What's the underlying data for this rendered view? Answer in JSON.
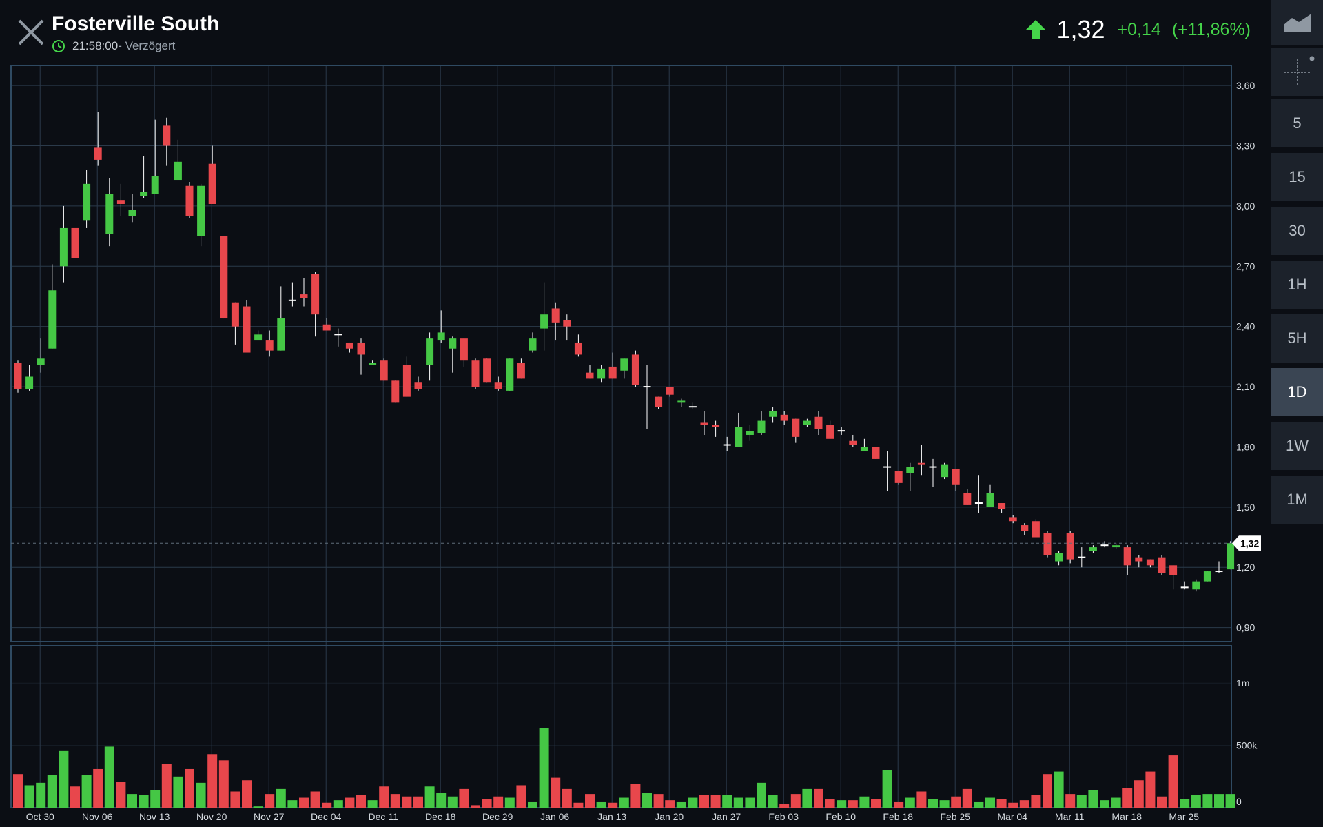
{
  "header": {
    "title": "Fosterville South",
    "time": "21:58:00",
    "delay_label": " - Verzögert",
    "last": "1,32",
    "change": "+0,14",
    "change_pct": "(+11,86%)"
  },
  "toolbar": {
    "timeframes": [
      "5",
      "15",
      "30",
      "1H",
      "5H",
      "1D",
      "1W",
      "1M"
    ],
    "active": "1D"
  },
  "colors": {
    "up": "#45c745",
    "down": "#e8474c",
    "flat": "#ffffff",
    "grid": "#2b3a4a",
    "background": "#0b0e14"
  },
  "chart_data": {
    "type": "candlestick",
    "y_ticks": [
      "3,60",
      "3,30",
      "3,00",
      "2,70",
      "2,40",
      "2,10",
      "1,80",
      "1,50",
      "1,20",
      "0,90"
    ],
    "y_tick_values": [
      3.6,
      3.3,
      3.0,
      2.7,
      2.4,
      2.1,
      1.8,
      1.5,
      1.2,
      0.9
    ],
    "ylim": [
      0.83,
      3.7
    ],
    "last_price_label": "1,32",
    "last_price": 1.32,
    "volume_ticks": [
      "1m",
      "500k",
      "0"
    ],
    "volume_tick_values": [
      1000000,
      500000,
      0
    ],
    "volume_max": 1300000,
    "x_ticks": [
      {
        "i": 2,
        "label": "Oct 30"
      },
      {
        "i": 7,
        "label": "Nov 06"
      },
      {
        "i": 12,
        "label": "Nov 13"
      },
      {
        "i": 17,
        "label": "Nov 20"
      },
      {
        "i": 22,
        "label": "Nov 27"
      },
      {
        "i": 27,
        "label": "Dec 04"
      },
      {
        "i": 32,
        "label": "Dec 11"
      },
      {
        "i": 37,
        "label": "Dec 18"
      },
      {
        "i": 42,
        "label": "Dec 29"
      },
      {
        "i": 47,
        "label": "Jan 06"
      },
      {
        "i": 52,
        "label": "Jan 13"
      },
      {
        "i": 57,
        "label": "Jan 20"
      },
      {
        "i": 62,
        "label": "Jan 27"
      },
      {
        "i": 67,
        "label": "Feb 03"
      },
      {
        "i": 72,
        "label": "Feb 10"
      },
      {
        "i": 77,
        "label": "Feb 18"
      },
      {
        "i": 82,
        "label": "Feb 25"
      },
      {
        "i": 87,
        "label": "Mar 04"
      },
      {
        "i": 92,
        "label": "Mar 11"
      },
      {
        "i": 97,
        "label": "Mar 18"
      },
      {
        "i": 102,
        "label": "Mar 25"
      }
    ],
    "candles": [
      [
        2.22,
        2.09,
        2.23,
        2.07,
        270000
      ],
      [
        2.09,
        2.15,
        2.21,
        2.08,
        180000
      ],
      [
        2.21,
        2.24,
        2.34,
        2.17,
        200000
      ],
      [
        2.29,
        2.58,
        2.71,
        2.29,
        260000
      ],
      [
        2.7,
        2.89,
        3.0,
        2.62,
        460000
      ],
      [
        2.89,
        2.74,
        2.89,
        2.74,
        170000
      ],
      [
        2.93,
        3.11,
        3.18,
        2.89,
        260000
      ],
      [
        3.29,
        3.23,
        3.47,
        3.2,
        310000
      ],
      [
        2.86,
        3.06,
        3.14,
        2.8,
        490000
      ],
      [
        3.03,
        3.01,
        3.11,
        2.95,
        210000
      ],
      [
        2.95,
        2.98,
        3.06,
        2.92,
        110000
      ],
      [
        3.05,
        3.07,
        3.25,
        3.04,
        100000
      ],
      [
        3.06,
        3.15,
        3.43,
        3.12,
        140000
      ],
      [
        3.4,
        3.3,
        3.44,
        3.2,
        350000
      ],
      [
        3.13,
        3.22,
        3.33,
        3.13,
        250000
      ],
      [
        3.1,
        2.95,
        3.12,
        2.94,
        310000
      ],
      [
        2.85,
        3.1,
        3.11,
        2.8,
        200000
      ],
      [
        3.21,
        3.01,
        3.3,
        3.01,
        430000
      ],
      [
        2.85,
        2.44,
        2.85,
        2.44,
        380000
      ],
      [
        2.52,
        2.4,
        2.52,
        2.31,
        130000
      ],
      [
        2.5,
        2.27,
        2.53,
        2.27,
        220000
      ],
      [
        2.33,
        2.36,
        2.38,
        2.35,
        10000
      ],
      [
        2.33,
        2.28,
        2.38,
        2.25,
        110000
      ],
      [
        2.28,
        2.44,
        2.6,
        2.28,
        150000
      ],
      [
        2.53,
        2.53,
        2.62,
        2.5,
        60000
      ],
      [
        2.56,
        2.54,
        2.64,
        2.5,
        80000
      ],
      [
        2.66,
        2.46,
        2.67,
        2.35,
        130000
      ],
      [
        2.41,
        2.38,
        2.44,
        2.38,
        40000
      ],
      [
        2.36,
        2.36,
        2.39,
        2.3,
        60000
      ],
      [
        2.32,
        2.29,
        2.32,
        2.27,
        80000
      ],
      [
        2.32,
        2.26,
        2.34,
        2.16,
        100000
      ],
      [
        2.21,
        2.22,
        2.23,
        2.21,
        60000
      ],
      [
        2.23,
        2.13,
        2.24,
        2.13,
        170000
      ],
      [
        2.13,
        2.02,
        2.13,
        2.02,
        110000
      ],
      [
        2.21,
        2.05,
        2.25,
        2.05,
        90000
      ],
      [
        2.12,
        2.09,
        2.15,
        2.08,
        90000
      ],
      [
        2.21,
        2.34,
        2.37,
        2.13,
        170000
      ],
      [
        2.33,
        2.37,
        2.48,
        2.32,
        120000
      ],
      [
        2.29,
        2.34,
        2.35,
        2.17,
        90000
      ],
      [
        2.34,
        2.23,
        2.34,
        2.2,
        150000
      ],
      [
        2.23,
        2.1,
        2.24,
        2.09,
        20000
      ],
      [
        2.24,
        2.12,
        2.24,
        2.12,
        70000
      ],
      [
        2.12,
        2.09,
        2.15,
        2.08,
        90000
      ],
      [
        2.08,
        2.24,
        2.24,
        2.08,
        80000
      ],
      [
        2.22,
        2.14,
        2.24,
        2.14,
        180000
      ],
      [
        2.28,
        2.34,
        2.37,
        2.27,
        50000
      ],
      [
        2.39,
        2.46,
        2.62,
        2.28,
        640000
      ],
      [
        2.49,
        2.42,
        2.52,
        2.33,
        240000
      ],
      [
        2.43,
        2.4,
        2.46,
        2.33,
        150000
      ],
      [
        2.32,
        2.26,
        2.36,
        2.25,
        40000
      ],
      [
        2.17,
        2.14,
        2.21,
        2.14,
        110000
      ],
      [
        2.14,
        2.19,
        2.21,
        2.12,
        50000
      ],
      [
        2.2,
        2.14,
        2.27,
        2.14,
        40000
      ],
      [
        2.18,
        2.24,
        2.24,
        2.14,
        80000
      ],
      [
        2.26,
        2.11,
        2.28,
        2.1,
        190000
      ],
      [
        2.1,
        2.1,
        2.21,
        1.89,
        120000
      ],
      [
        2.05,
        2.0,
        2.05,
        1.99,
        110000
      ],
      [
        2.1,
        2.06,
        2.1,
        2.05,
        60000
      ],
      [
        2.02,
        2.03,
        2.04,
        2.0,
        50000
      ],
      [
        2.0,
        2.0,
        2.02,
        1.99,
        80000
      ],
      [
        1.92,
        1.91,
        1.98,
        1.86,
        100000
      ],
      [
        1.91,
        1.9,
        1.93,
        1.85,
        100000
      ],
      [
        1.81,
        1.81,
        1.85,
        1.78,
        100000
      ],
      [
        1.8,
        1.9,
        1.97,
        1.8,
        80000
      ],
      [
        1.86,
        1.88,
        1.91,
        1.83,
        80000
      ],
      [
        1.87,
        1.93,
        1.98,
        1.86,
        200000
      ],
      [
        1.95,
        1.98,
        2.0,
        1.92,
        100000
      ],
      [
        1.96,
        1.93,
        1.98,
        1.91,
        30000
      ],
      [
        1.94,
        1.85,
        1.94,
        1.82,
        110000
      ],
      [
        1.91,
        1.93,
        1.94,
        1.9,
        150000
      ],
      [
        1.95,
        1.89,
        1.98,
        1.86,
        150000
      ],
      [
        1.91,
        1.84,
        1.93,
        1.84,
        70000
      ],
      [
        1.88,
        1.88,
        1.9,
        1.86,
        60000
      ],
      [
        1.83,
        1.81,
        1.86,
        1.8,
        60000
      ],
      [
        1.78,
        1.8,
        1.84,
        1.79,
        90000
      ],
      [
        1.8,
        1.74,
        1.8,
        1.74,
        70000
      ],
      [
        1.7,
        1.7,
        1.78,
        1.58,
        300000
      ],
      [
        1.68,
        1.62,
        1.68,
        1.61,
        50000
      ],
      [
        1.67,
        1.7,
        1.72,
        1.58,
        80000
      ],
      [
        1.72,
        1.71,
        1.81,
        1.66,
        130000
      ],
      [
        1.7,
        1.7,
        1.74,
        1.6,
        70000
      ],
      [
        1.65,
        1.71,
        1.72,
        1.64,
        60000
      ],
      [
        1.69,
        1.61,
        1.69,
        1.58,
        90000
      ],
      [
        1.57,
        1.51,
        1.59,
        1.51,
        150000
      ],
      [
        1.52,
        1.52,
        1.66,
        1.47,
        50000
      ],
      [
        1.5,
        1.57,
        1.61,
        1.5,
        80000
      ],
      [
        1.52,
        1.49,
        1.52,
        1.47,
        70000
      ],
      [
        1.45,
        1.43,
        1.46,
        1.42,
        40000
      ],
      [
        1.41,
        1.38,
        1.42,
        1.36,
        60000
      ],
      [
        1.43,
        1.35,
        1.44,
        1.35,
        100000
      ],
      [
        1.37,
        1.26,
        1.38,
        1.25,
        270000
      ],
      [
        1.23,
        1.27,
        1.28,
        1.21,
        290000
      ],
      [
        1.37,
        1.24,
        1.38,
        1.22,
        110000
      ],
      [
        1.25,
        1.25,
        1.3,
        1.2,
        100000
      ],
      [
        1.28,
        1.3,
        1.31,
        1.27,
        140000
      ],
      [
        1.31,
        1.31,
        1.33,
        1.3,
        60000
      ],
      [
        1.3,
        1.31,
        1.32,
        1.29,
        80000
      ],
      [
        1.3,
        1.21,
        1.31,
        1.16,
        160000
      ],
      [
        1.25,
        1.23,
        1.26,
        1.2,
        220000
      ],
      [
        1.24,
        1.21,
        1.24,
        1.2,
        290000
      ],
      [
        1.25,
        1.17,
        1.26,
        1.16,
        90000
      ],
      [
        1.21,
        1.16,
        1.21,
        1.09,
        420000
      ],
      [
        1.1,
        1.1,
        1.13,
        1.09,
        70000
      ],
      [
        1.09,
        1.13,
        1.14,
        1.08,
        100000
      ],
      [
        1.13,
        1.18,
        1.18,
        1.13,
        110000
      ],
      [
        1.18,
        1.18,
        1.23,
        1.17,
        110000
      ],
      [
        1.19,
        1.32,
        1.33,
        1.19,
        110000
      ]
    ]
  }
}
